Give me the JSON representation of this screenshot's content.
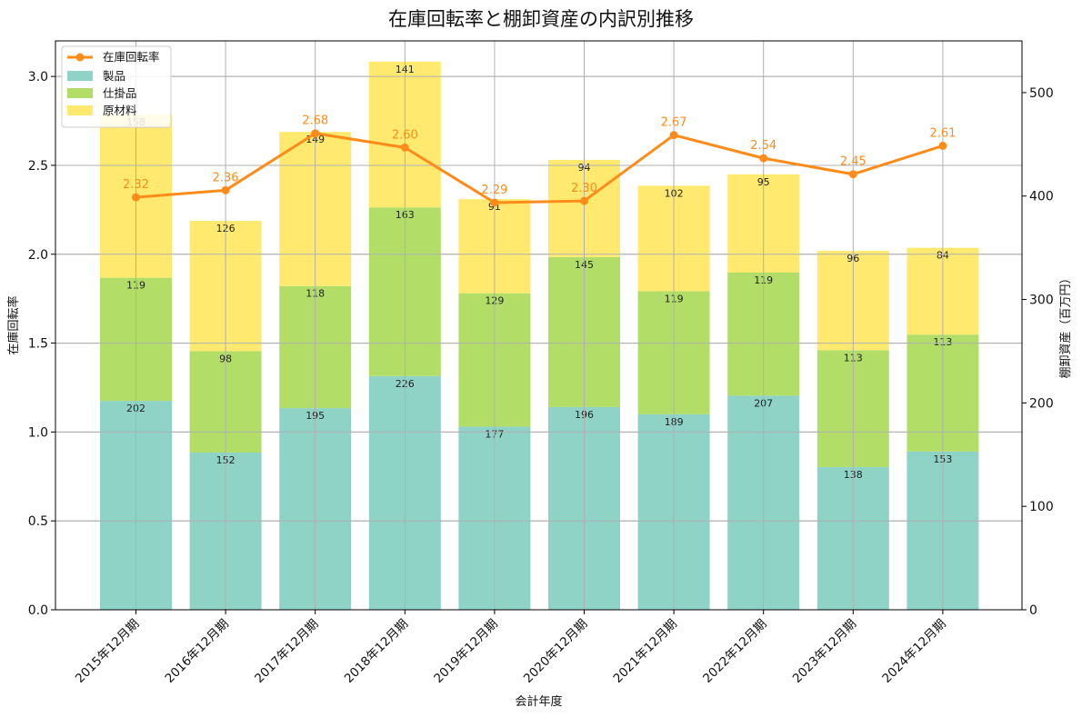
{
  "chart_data": {
    "type": "bar",
    "title": "在庫回転率と棚卸資産の内訳別推移",
    "xlabel": "会計年度",
    "ylabel_left": "在庫回転率",
    "ylabel_right": "棚卸資産（百万円）",
    "categories": [
      "2015年12月期",
      "2016年12月期",
      "2017年12月期",
      "2018年12月期",
      "2019年12月期",
      "2020年12月期",
      "2021年12月期",
      "2022年12月期",
      "2023年12月期",
      "2024年12月期"
    ],
    "series": [
      {
        "name": "製品",
        "color": "#8fd3c7",
        "values": [
          202,
          152,
          195,
          226,
          177,
          196,
          189,
          207,
          138,
          153
        ]
      },
      {
        "name": "仕掛品",
        "color": "#b2de68",
        "values": [
          119,
          98,
          118,
          163,
          129,
          145,
          119,
          119,
          113,
          113
        ]
      },
      {
        "name": "原材料",
        "color": "#ffea6f",
        "values": [
          158,
          126,
          149,
          141,
          91,
          94,
          102,
          95,
          96,
          84
        ]
      }
    ],
    "line": {
      "name": "在庫回転率",
      "color": "#ff8c1a",
      "values": [
        2.32,
        2.36,
        2.68,
        2.6,
        2.29,
        2.3,
        2.67,
        2.54,
        2.45,
        2.61
      ]
    },
    "ylim_left": [
      0,
      3.2
    ],
    "yticks_left": [
      "0.0",
      "0.5",
      "1.0",
      "1.5",
      "2.0",
      "2.5",
      "3.0"
    ],
    "ylim_right": [
      0,
      550
    ],
    "yticks_right": [
      "0",
      "100",
      "200",
      "300",
      "400",
      "500"
    ],
    "grid": true,
    "legend": "top-left"
  }
}
